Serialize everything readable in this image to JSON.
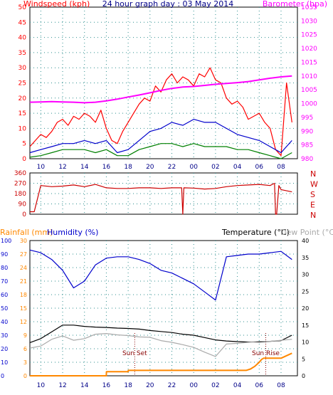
{
  "header": {
    "wind_label": "Windspeed (kph)",
    "title": "24 hour graph day : 03 May 2014",
    "baro_label": "Barometer (hpa)"
  },
  "panel3_labels": {
    "rainfall": "Rainfall (mm)",
    "humidity": "Humidity (%)",
    "temperature": "Temperature (°C)",
    "dewpoint": "Dew Point (°C)",
    "sunset": "Sun Set",
    "sunrise": "Sun Rise"
  },
  "colors": {
    "wind_gust": "#ff0000",
    "wind_avg": "#0000cc",
    "wind_speed": "#008000",
    "barometer": "#ff00ff",
    "direction": "#cc0000",
    "humidity": "#0000cc",
    "temperature": "#000000",
    "dewpoint": "#aaaaaa",
    "rainfall": "#ff8800",
    "grid": "#2f8f8f"
  },
  "chart_data": [
    {
      "type": "line",
      "id": "wind-barometer",
      "title": "24 hour graph day : 03 May 2014",
      "x_ticks": [
        "10",
        "12",
        "14",
        "16",
        "18",
        "20",
        "22",
        "00",
        "02",
        "04",
        "06",
        "08"
      ],
      "ylabel": "Windspeed (kph)",
      "ylim": [
        0,
        50
      ],
      "y_ticks": [
        0,
        5,
        10,
        15,
        20,
        25,
        30,
        35,
        40,
        45,
        50
      ],
      "y2label": "Barometer (hpa)",
      "y2lim": [
        980,
        1035
      ],
      "y2_ticks": [
        980,
        985,
        990,
        995,
        1000,
        1005,
        1010,
        1015,
        1020,
        1025,
        1030,
        1035
      ],
      "series": [
        {
          "name": "Gust",
          "axis": "left",
          "x": [
            9.0,
            9.5,
            10,
            10.5,
            11,
            11.5,
            12,
            12.5,
            13,
            13.5,
            14,
            14.5,
            15,
            15.5,
            16,
            16.5,
            17,
            17.5,
            18,
            18.5,
            19,
            19.5,
            20,
            20.5,
            21,
            21.5,
            22,
            22.5,
            23,
            23.5,
            24,
            24.5,
            25,
            25.5,
            26,
            26.5,
            27,
            27.5,
            28,
            28.5,
            29,
            29.5,
            30,
            30.5,
            31,
            31.5,
            32,
            32.5,
            33
          ],
          "values": [
            4,
            6,
            8,
            7,
            9,
            12,
            13,
            11,
            14,
            13,
            15,
            14,
            12,
            16,
            10,
            6,
            5,
            9,
            12,
            15,
            18,
            20,
            19,
            24,
            22,
            26,
            28,
            25,
            27,
            26,
            24,
            28,
            27,
            30,
            26,
            25,
            20,
            18,
            19,
            17,
            13,
            14,
            15,
            12,
            10,
            3,
            1,
            25,
            12
          ]
        },
        {
          "name": "Average",
          "axis": "left",
          "x": [
            9.0,
            10,
            11,
            12,
            13,
            14,
            15,
            16,
            17,
            18,
            19,
            20,
            21,
            22,
            23,
            24,
            25,
            26,
            27,
            28,
            29,
            30,
            31,
            32,
            33
          ],
          "values": [
            2,
            3,
            4,
            5,
            5,
            6,
            5,
            6,
            2,
            3,
            6,
            9,
            10,
            12,
            11,
            13,
            12,
            12,
            10,
            8,
            7,
            6,
            4,
            2,
            6
          ]
        },
        {
          "name": "Wind",
          "axis": "left",
          "x": [
            9.0,
            10,
            11,
            12,
            13,
            14,
            15,
            16,
            17,
            18,
            19,
            20,
            21,
            22,
            23,
            24,
            25,
            26,
            27,
            28,
            29,
            30,
            31,
            32,
            33
          ],
          "values": [
            0.5,
            1,
            2,
            3,
            3,
            3,
            2,
            3,
            1,
            1,
            3,
            4,
            5,
            5,
            4,
            5,
            4,
            4,
            4,
            3,
            3,
            2,
            1,
            0,
            2
          ]
        },
        {
          "name": "Barometer",
          "axis": "right",
          "x": [
            9.0,
            10,
            11,
            12,
            13,
            14,
            15,
            16,
            17,
            18,
            19,
            20,
            21,
            22,
            23,
            24,
            25,
            26,
            27,
            28,
            29,
            30,
            31,
            32,
            33
          ],
          "values": [
            1000.5,
            1000.6,
            1000.7,
            1000.6,
            1000.5,
            1000.3,
            1000.5,
            1001.0,
            1001.6,
            1002.4,
            1003.1,
            1003.9,
            1004.8,
            1005.5,
            1006.0,
            1006.2,
            1006.6,
            1007.0,
            1007.3,
            1007.6,
            1008.0,
            1008.6,
            1009.2,
            1009.7,
            1010.0
          ]
        }
      ]
    },
    {
      "type": "line",
      "id": "wind-direction",
      "ylim": [
        0,
        360
      ],
      "y_ticks": [
        0,
        45,
        90,
        135,
        180,
        225,
        270,
        315,
        360
      ],
      "y2_labels": [
        "N",
        "W",
        "S",
        "E",
        "N"
      ],
      "x": [
        9.0,
        9.2,
        9.4,
        10,
        11,
        12,
        13,
        14,
        15,
        16,
        17,
        18,
        19,
        20,
        21,
        22,
        22.9,
        23.0,
        23.1,
        24,
        25,
        26,
        27,
        28,
        29,
        30,
        31,
        31.4,
        31.5,
        31.6,
        31.8,
        32,
        33
      ],
      "values": [
        22,
        22,
        22,
        250,
        240,
        245,
        255,
        240,
        260,
        230,
        225,
        225,
        230,
        230,
        225,
        230,
        230,
        0,
        230,
        228,
        220,
        225,
        240,
        250,
        255,
        260,
        250,
        270,
        0,
        0,
        250,
        215,
        195
      ]
    },
    {
      "type": "line",
      "id": "rain-humidity-temperature",
      "x_ticks": [
        "10",
        "12",
        "14",
        "16",
        "18",
        "20",
        "22",
        "00",
        "02",
        "04",
        "06",
        "08"
      ],
      "y_humidity_ticks": [
        0,
        10,
        20,
        30,
        40,
        50,
        60,
        70,
        80,
        90,
        100
      ],
      "y_rain_ticks": [
        0,
        3,
        6,
        9,
        12,
        15,
        18,
        21,
        24,
        27,
        30
      ],
      "y_temp_ticks": [
        0,
        5,
        10,
        15,
        20,
        25,
        30,
        35,
        40
      ],
      "markers": {
        "sunset_x": 18.6,
        "sunrise_x": 30.6
      },
      "series": [
        {
          "name": "Humidity",
          "x": [
            9.0,
            10,
            11,
            12,
            13,
            14,
            15,
            16,
            17,
            18,
            19,
            20,
            21,
            22,
            23,
            24,
            25,
            26,
            27,
            28,
            29,
            30,
            31,
            32,
            33
          ],
          "values": [
            93,
            91,
            86,
            78,
            65,
            70,
            82,
            87,
            88,
            88,
            86,
            83,
            78,
            76,
            72,
            68,
            62,
            56,
            88,
            89,
            90,
            90,
            91,
            92,
            86
          ]
        },
        {
          "name": "Temperature",
          "x": [
            9.0,
            10,
            11,
            12,
            13,
            14,
            15,
            16,
            17,
            18,
            19,
            20,
            21,
            22,
            23,
            24,
            25,
            26,
            27,
            28,
            29,
            30,
            31,
            32,
            33
          ],
          "values": [
            9.8,
            11,
            13,
            15,
            15,
            14.6,
            14.4,
            14.3,
            14.1,
            14,
            13.8,
            13.4,
            13.1,
            12.8,
            12.3,
            12,
            11.3,
            10.6,
            10.3,
            10.1,
            10.0,
            10.0,
            10.2,
            10.4,
            12
          ]
        },
        {
          "name": "Dew Point",
          "x": [
            9.0,
            10,
            11,
            12,
            13,
            14,
            15,
            16,
            17,
            18,
            19,
            20,
            21,
            22,
            23,
            24,
            25,
            26,
            27,
            28,
            29,
            30,
            31,
            32,
            33
          ],
          "values": [
            8.2,
            8.8,
            10.8,
            11.8,
            10.5,
            11,
            12.3,
            12.5,
            12.1,
            11.9,
            11.5,
            11.4,
            10.4,
            9.9,
            9.2,
            8.4,
            7.0,
            5.7,
            9.4,
            9.6,
            9.9,
            10.2,
            10.2,
            10.5,
            10.8
          ]
        },
        {
          "name": "Rainfall",
          "x": [
            9.0,
            10,
            11,
            12,
            13,
            14,
            15,
            16,
            16.01,
            17,
            18,
            18.01,
            19,
            20,
            21,
            22,
            23,
            24,
            25,
            26,
            27,
            28,
            28.8,
            29.2,
            29.6,
            30,
            30.2,
            30.4,
            31,
            32,
            33
          ],
          "values": [
            0,
            0,
            0,
            0,
            0,
            0,
            0,
            0,
            0.9,
            0.9,
            0.9,
            1.2,
            1.2,
            1.2,
            1.2,
            1.2,
            1.2,
            1.2,
            1.2,
            1.2,
            1.2,
            1.2,
            1.2,
            1.5,
            2.1,
            3.0,
            3.6,
            3.9,
            3.9,
            3.9,
            5.0
          ]
        }
      ]
    }
  ]
}
